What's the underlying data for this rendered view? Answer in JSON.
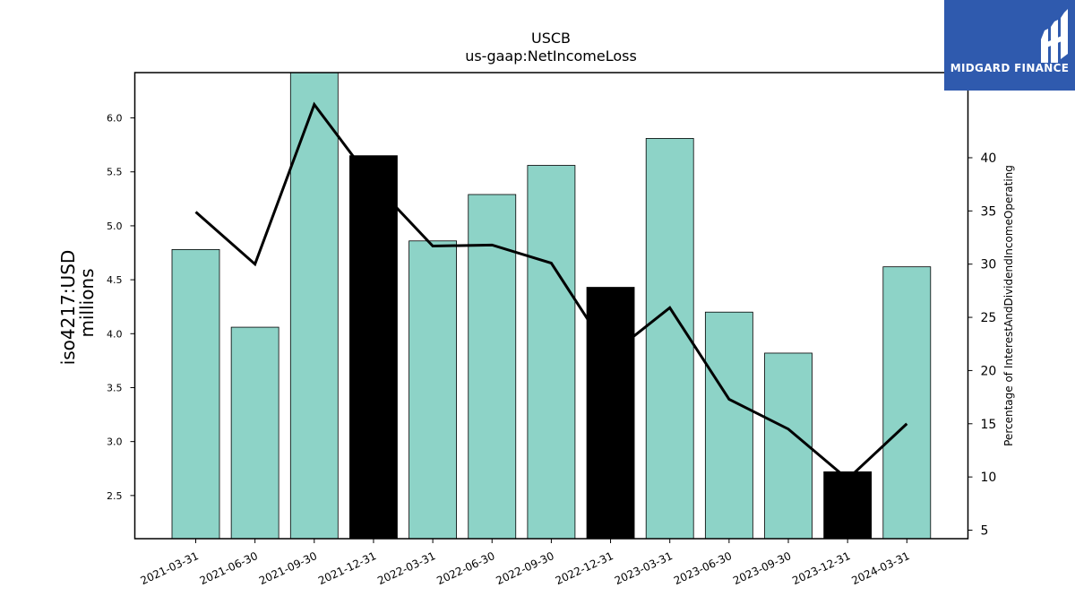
{
  "logo": {
    "text": "MIDGARD FINANCE",
    "color": "#2f5aae"
  },
  "chart_data": {
    "type": "bar",
    "title": "USCB",
    "subtitle": "us-gaap:NetIncomeLoss",
    "ylabel": "iso4217:USD\nmillions",
    "y2label": "Percentage of InterestAndDividendIncomeOperating",
    "categories": [
      "2021-03-31",
      "2021-06-30",
      "2021-09-30",
      "2021-12-31",
      "2022-03-31",
      "2022-06-30",
      "2022-09-30",
      "2022-12-31",
      "2023-03-31",
      "2023-06-30",
      "2023-09-30",
      "2023-12-31",
      "2024-03-31"
    ],
    "bar_values": [
      4.78,
      4.06,
      6.42,
      5.65,
      4.86,
      5.29,
      5.56,
      4.43,
      5.81,
      4.2,
      3.82,
      2.72,
      4.62
    ],
    "bar_colors": [
      "#8dd3c7",
      "#8dd3c7",
      "#8dd3c7",
      "#000000",
      "#8dd3c7",
      "#8dd3c7",
      "#8dd3c7",
      "#000000",
      "#8dd3c7",
      "#8dd3c7",
      "#8dd3c7",
      "#000000",
      "#8dd3c7"
    ],
    "line_values": [
      34.9,
      30.0,
      45.0,
      37.6,
      31.7,
      31.8,
      30.1,
      21.5,
      25.9,
      17.3,
      14.5,
      9.8,
      15.0
    ],
    "line_color": "#000000",
    "ylim": [
      2.1,
      6.42
    ],
    "y2lim": [
      4.2,
      48.0
    ],
    "yticks": [
      "2.5",
      "3.0",
      "3.5",
      "4.0",
      "4.5",
      "5.0",
      "5.5",
      "6.0"
    ],
    "y2ticks": [
      "5",
      "10",
      "15",
      "20",
      "25",
      "30",
      "35",
      "40"
    ]
  }
}
